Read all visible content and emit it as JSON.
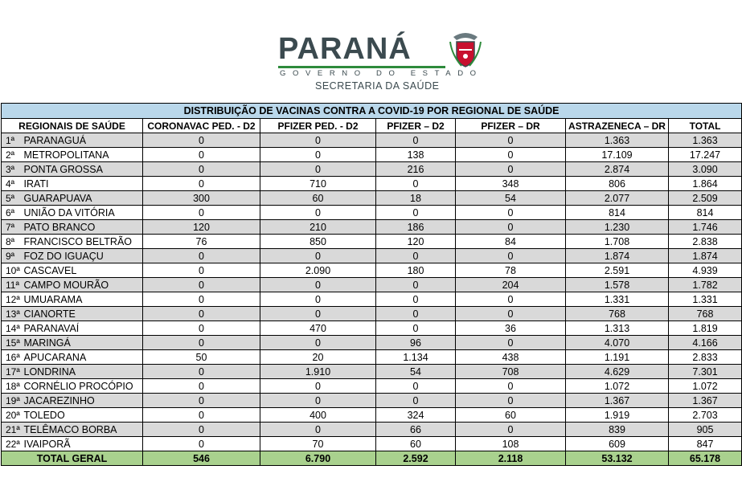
{
  "logo": {
    "wordmark": "PARANÁ",
    "subtitle": "GOVERNO DO ESTADO",
    "secretariat": "SECRETARIA DA SAÚDE"
  },
  "table": {
    "title": "DISTRIBUIÇÃO DE VACINAS CONTRA A COVID-19 POR REGIONAL DE SAÚDE",
    "headers": [
      "REGIONAIS DE SAÚDE",
      "CORONAVAC PED. - D2",
      "PFIZER PED. - D2",
      "PFIZER – D2",
      "PFIZER – DR",
      "ASTRAZENECA – DR",
      "TOTAL"
    ],
    "rows": [
      {
        "ord": "1ª",
        "name": "PARANAGUÁ",
        "v": [
          "0",
          "0",
          "0",
          "0",
          "1.363",
          "1.363"
        ]
      },
      {
        "ord": "2ª",
        "name": "METROPOLITANA",
        "v": [
          "0",
          "0",
          "138",
          "0",
          "17.109",
          "17.247"
        ]
      },
      {
        "ord": "3ª",
        "name": "PONTA GROSSA",
        "v": [
          "0",
          "0",
          "216",
          "0",
          "2.874",
          "3.090"
        ]
      },
      {
        "ord": "4ª",
        "name": "IRATI",
        "v": [
          "0",
          "710",
          "0",
          "348",
          "806",
          "1.864"
        ]
      },
      {
        "ord": "5ª",
        "name": "GUARAPUAVA",
        "v": [
          "300",
          "60",
          "18",
          "54",
          "2.077",
          "2.509"
        ]
      },
      {
        "ord": "6ª",
        "name": "UNIÃO DA VITÓRIA",
        "v": [
          "0",
          "0",
          "0",
          "0",
          "814",
          "814"
        ]
      },
      {
        "ord": "7ª",
        "name": "PATO BRANCO",
        "v": [
          "120",
          "210",
          "186",
          "0",
          "1.230",
          "1.746"
        ]
      },
      {
        "ord": "8ª",
        "name": "FRANCISCO BELTRÃO",
        "v": [
          "76",
          "850",
          "120",
          "84",
          "1.708",
          "2.838"
        ]
      },
      {
        "ord": "9ª",
        "name": "FOZ DO IGUAÇU",
        "v": [
          "0",
          "0",
          "0",
          "0",
          "1.874",
          "1.874"
        ]
      },
      {
        "ord": "10ª",
        "name": "CASCAVEL",
        "v": [
          "0",
          "2.090",
          "180",
          "78",
          "2.591",
          "4.939"
        ]
      },
      {
        "ord": "11ª",
        "name": "CAMPO MOURÃO",
        "v": [
          "0",
          "0",
          "0",
          "204",
          "1.578",
          "1.782"
        ]
      },
      {
        "ord": "12ª",
        "name": "UMUARAMA",
        "v": [
          "0",
          "0",
          "0",
          "0",
          "1.331",
          "1.331"
        ]
      },
      {
        "ord": "13ª",
        "name": "CIANORTE",
        "v": [
          "0",
          "0",
          "0",
          "0",
          "768",
          "768"
        ]
      },
      {
        "ord": "14ª",
        "name": "PARANAVAÍ",
        "v": [
          "0",
          "470",
          "0",
          "36",
          "1.313",
          "1.819"
        ]
      },
      {
        "ord": "15ª",
        "name": "MARINGÁ",
        "v": [
          "0",
          "0",
          "96",
          "0",
          "4.070",
          "4.166"
        ]
      },
      {
        "ord": "16ª",
        "name": "APUCARANA",
        "v": [
          "50",
          "20",
          "1.134",
          "438",
          "1.191",
          "2.833"
        ]
      },
      {
        "ord": "17ª",
        "name": "LONDRINA",
        "v": [
          "0",
          "1.910",
          "54",
          "708",
          "4.629",
          "7.301"
        ]
      },
      {
        "ord": "18ª",
        "name": "CORNÉLIO PROCÓPIO",
        "v": [
          "0",
          "0",
          "0",
          "0",
          "1.072",
          "1.072"
        ]
      },
      {
        "ord": "19ª",
        "name": "JACAREZINHO",
        "v": [
          "0",
          "0",
          "0",
          "0",
          "1.367",
          "1.367"
        ]
      },
      {
        "ord": "20ª",
        "name": "TOLEDO",
        "v": [
          "0",
          "400",
          "324",
          "60",
          "1.919",
          "2.703"
        ]
      },
      {
        "ord": "21ª",
        "name": "TELÊMACO BORBA",
        "v": [
          "0",
          "0",
          "66",
          "0",
          "839",
          "905"
        ]
      },
      {
        "ord": "22ª",
        "name": "IVAIPORÃ",
        "v": [
          "0",
          "70",
          "60",
          "108",
          "609",
          "847"
        ]
      }
    ],
    "total": {
      "label": "TOTAL GERAL",
      "v": [
        "546",
        "6.790",
        "2.592",
        "2.118",
        "53.132",
        "65.178"
      ]
    }
  },
  "colors": {
    "title_bg": "#b9d7ea",
    "row_gray": "#d9d9d9",
    "total_bg": "#a9d18e",
    "logo_text": "#3b4a4f",
    "logo_green": "#2e8b3b"
  }
}
